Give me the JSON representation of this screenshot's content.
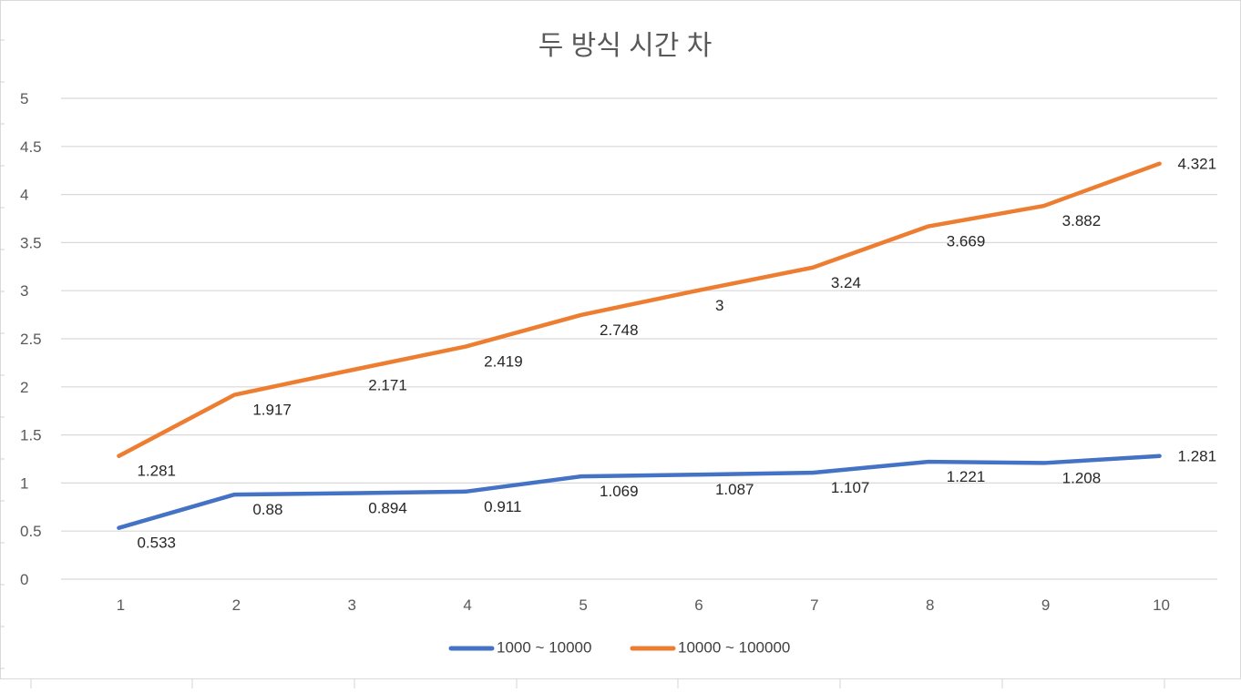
{
  "chart_data": {
    "type": "line",
    "title": "두 방식 시간 차",
    "xlabel": "",
    "ylabel": "",
    "categories": [
      "1",
      "2",
      "3",
      "4",
      "5",
      "6",
      "7",
      "8",
      "9",
      "10"
    ],
    "ylim": [
      0,
      5
    ],
    "yticks": [
      "0",
      "0.5",
      "1",
      "1.5",
      "2",
      "2.5",
      "3",
      "3.5",
      "4",
      "4.5",
      "5"
    ],
    "grid": true,
    "legend_position": "bottom",
    "series": [
      {
        "name": "1000 ~ 10000",
        "color": "#4472c4",
        "values": [
          0.533,
          0.88,
          0.894,
          0.911,
          1.069,
          1.087,
          1.107,
          1.221,
          1.208,
          1.281
        ],
        "labels": [
          "0.533",
          "0.88",
          "0.894",
          "0.911",
          "1.069",
          "1.087",
          "1.107",
          "1.221",
          "1.208",
          "1.281"
        ]
      },
      {
        "name": "10000 ~ 100000",
        "color": "#ed7d31",
        "values": [
          1.281,
          1.917,
          2.171,
          2.419,
          2.748,
          3,
          3.24,
          3.669,
          3.882,
          4.321
        ],
        "labels": [
          "1.281",
          "1.917",
          "2.171",
          "2.419",
          "2.748",
          "3",
          "3.24",
          "3.669",
          "3.882",
          "4.321"
        ]
      }
    ]
  }
}
